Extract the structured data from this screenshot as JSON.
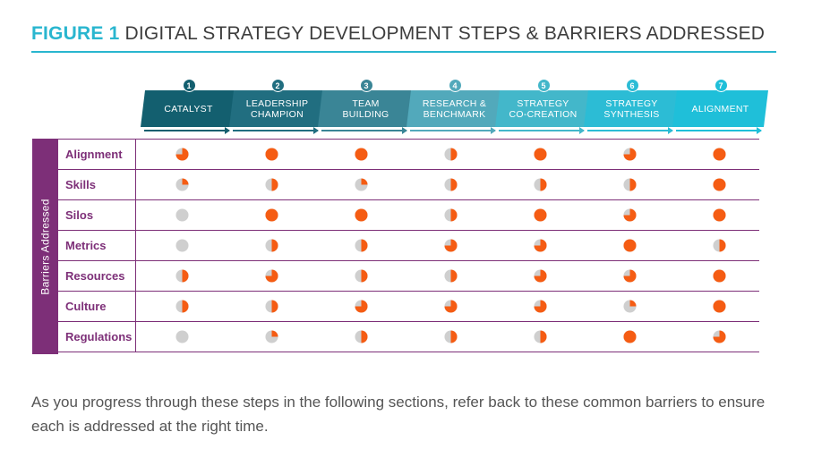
{
  "figure": {
    "label": "FIGURE 1",
    "title": "DIGITAL STRATEGY DEVELOPMENT STEPS & BARRIERS ADDRESSED"
  },
  "colors": {
    "accent": "#29b6cf",
    "purple": "#7d2f78",
    "orange": "#f55c13",
    "gray": "#cfcfcf"
  },
  "steps": [
    {
      "number": "1",
      "lines": [
        "CATALYST"
      ],
      "color": "#135f6f"
    },
    {
      "number": "2",
      "lines": [
        "LEADERSHIP",
        "CHAMPION"
      ],
      "color": "#216e80"
    },
    {
      "number": "3",
      "lines": [
        "TEAM",
        "BUILDING"
      ],
      "color": "#3a8596"
    },
    {
      "number": "4",
      "lines": [
        "RESEARCH &",
        "BENCHMARK"
      ],
      "color": "#52a9bb"
    },
    {
      "number": "5",
      "lines": [
        "STRATEGY",
        "CO-CREATION"
      ],
      "color": "#43b7ca"
    },
    {
      "number": "6",
      "lines": [
        "STRATEGY",
        "SYNTHESIS"
      ],
      "color": "#2cbcd5"
    },
    {
      "number": "7",
      "lines": [
        "ALIGNMENT"
      ],
      "color": "#1fbfd9"
    }
  ],
  "side_label": "Barriers Addressed",
  "rows": [
    {
      "label": "Alignment",
      "levels": [
        0.75,
        1,
        1,
        0.5,
        1,
        0.75,
        1
      ]
    },
    {
      "label": "Skills",
      "levels": [
        0.25,
        0.5,
        0.25,
        0.5,
        0.5,
        0.5,
        1
      ]
    },
    {
      "label": "Silos",
      "levels": [
        0,
        1,
        1,
        0.5,
        1,
        0.75,
        1
      ]
    },
    {
      "label": "Metrics",
      "levels": [
        0,
        0.5,
        0.5,
        0.75,
        0.75,
        1,
        0.5
      ]
    },
    {
      "label": "Resources",
      "levels": [
        0.5,
        0.75,
        0.5,
        0.5,
        0.75,
        0.75,
        1
      ]
    },
    {
      "label": "Culture",
      "levels": [
        0.5,
        0.5,
        0.75,
        0.75,
        0.75,
        0.25,
        1
      ]
    },
    {
      "label": "Regulations",
      "levels": [
        0,
        0.25,
        0.5,
        0.5,
        0.5,
        1,
        0.75
      ]
    }
  ],
  "caption": "As you progress through these steps in the following sections, refer back to these common barriers to ensure each is addressed at the right time."
}
